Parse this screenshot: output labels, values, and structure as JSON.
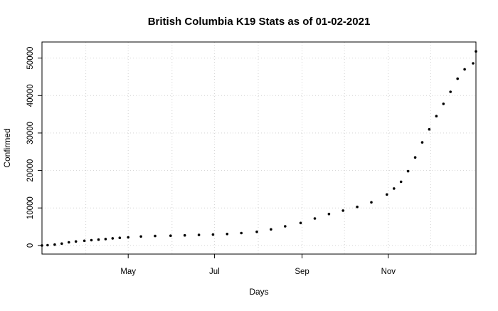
{
  "chart_data": {
    "type": "scatter",
    "title": "British Columbia K19 Stats as of 01-02-2021",
    "xlabel": "Days",
    "ylabel": "Confirmed",
    "xlim": [
      "2020-03-01",
      "2021-01-02"
    ],
    "ylim": [
      -2300,
      54300
    ],
    "x_ticks": [
      {
        "label": "May",
        "date": "2020-05-01"
      },
      {
        "label": "Jul",
        "date": "2020-07-01"
      },
      {
        "label": "Sep",
        "date": "2020-09-01"
      },
      {
        "label": "Nov",
        "date": "2020-11-01"
      }
    ],
    "x_grid_dates": [
      "2020-04-01",
      "2020-05-01",
      "2020-06-01",
      "2020-07-01",
      "2020-08-01",
      "2020-09-01",
      "2020-10-01",
      "2020-11-01",
      "2020-12-01"
    ],
    "y_ticks": [
      0,
      10000,
      20000,
      30000,
      40000,
      50000
    ],
    "grid": true,
    "marker": "filled-circle",
    "color": "#000000",
    "series": [
      {
        "x": [
          "2020-03-01",
          "2020-03-05",
          "2020-03-10",
          "2020-03-15",
          "2020-03-20",
          "2020-03-25",
          "2020-03-31",
          "2020-04-05",
          "2020-04-10",
          "2020-04-15",
          "2020-04-20",
          "2020-04-25",
          "2020-05-01",
          "2020-05-10",
          "2020-05-20",
          "2020-05-31",
          "2020-06-10",
          "2020-06-20",
          "2020-06-30",
          "2020-07-10",
          "2020-07-20",
          "2020-07-31",
          "2020-08-10",
          "2020-08-20",
          "2020-08-31",
          "2020-09-10",
          "2020-09-20",
          "2020-09-30",
          "2020-10-10",
          "2020-10-20",
          "2020-10-31",
          "2020-11-05",
          "2020-11-10",
          "2020-11-15",
          "2020-11-20",
          "2020-11-25",
          "2020-11-30",
          "2020-12-05",
          "2020-12-10",
          "2020-12-15",
          "2020-12-20",
          "2020-12-25",
          "2020-12-31",
          "2021-01-02"
        ],
        "y": [
          0,
          80,
          230,
          500,
          830,
          1070,
          1260,
          1400,
          1550,
          1700,
          1900,
          2030,
          2170,
          2400,
          2530,
          2600,
          2700,
          2800,
          2900,
          3050,
          3300,
          3650,
          4300,
          5100,
          6000,
          7200,
          8400,
          9300,
          10300,
          11500,
          13600,
          15200,
          17000,
          19800,
          23500,
          27500,
          31000,
          34500,
          37800,
          41000,
          44500,
          47000,
          48600,
          51800
        ]
      }
    ]
  }
}
